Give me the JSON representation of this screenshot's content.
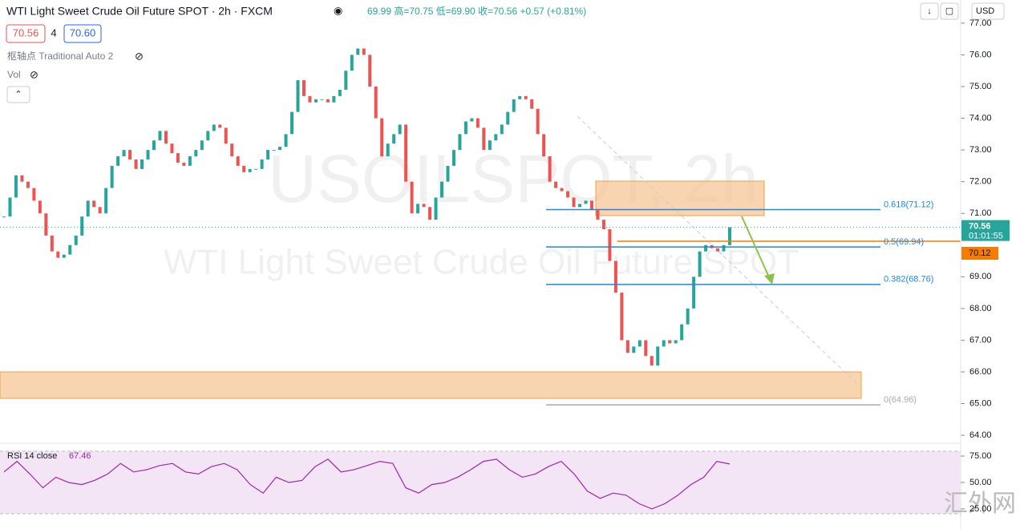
{
  "header": {
    "title": "WTI Light Sweet Crude Oil Future SPOT · 2h · FXCM",
    "ohlc": "69.99 高=70.75 低=69.90 收=70.56 +0.57 (+0.81%)",
    "currency": "USD"
  },
  "quote": {
    "bid": "70.56",
    "spread": "4",
    "ask": "70.60"
  },
  "indicators": {
    "pivot": "枢轴点 Traditional Auto 2",
    "vol": "Vol"
  },
  "watermark": {
    "symbol": "USOILSPOT, 2h",
    "name": "WTI Light Sweet Crude Oil Future SPOT",
    "site": "汇外网"
  },
  "chart_data": {
    "type": "candlestick",
    "values": [
      70.9,
      71.5,
      72.2,
      72.0,
      71.8,
      71.4,
      71.0,
      70.3,
      69.8,
      69.6,
      69.7,
      70.0,
      70.3,
      70.9,
      71.4,
      71.2,
      71.0,
      71.8,
      72.5,
      72.8,
      73.0,
      72.7,
      72.4,
      72.7,
      73.0,
      73.3,
      73.6,
      73.2,
      72.9,
      72.6,
      72.5,
      72.8,
      73.0,
      73.3,
      73.6,
      73.8,
      73.7,
      73.2,
      72.8,
      72.5,
      72.3,
      72.4,
      72.4,
      72.7,
      73.0,
      73.0,
      73.1,
      73.5,
      74.2,
      75.2,
      74.7,
      74.5,
      74.6,
      74.6,
      74.5,
      74.7,
      74.9,
      75.5,
      76.0,
      76.2,
      76.0,
      75.0,
      74.0,
      72.8,
      73.2,
      73.5,
      73.8,
      72.0,
      71.0,
      71.3,
      71.2,
      70.8,
      71.5,
      72.0,
      72.5,
      73.0,
      73.5,
      73.9,
      74.0,
      73.7,
      73.0,
      73.3,
      73.5,
      73.8,
      74.2,
      74.6,
      74.7,
      74.6,
      74.3,
      73.5,
      72.8,
      72.0,
      71.8,
      71.7,
      71.5,
      71.2,
      71.3,
      71.4,
      71.1,
      70.8,
      70.5,
      69.5,
      68.5,
      67.0,
      66.6,
      66.8,
      67.0,
      66.5,
      66.2,
      66.8,
      67.0,
      66.9,
      67.0,
      67.5,
      68.0,
      69.0,
      69.8,
      70.0,
      69.9,
      69.8,
      70.0,
      70.56
    ],
    "ylim": [
      63.75,
      77.73
    ],
    "yticks": [
      {
        "value": 77,
        "label": "77.00"
      },
      {
        "value": 76,
        "label": "76.00"
      },
      {
        "value": 75,
        "label": "75.00"
      },
      {
        "value": 74,
        "label": "74.00"
      },
      {
        "value": 73,
        "label": "73.00"
      },
      {
        "value": 72,
        "label": "72.00"
      },
      {
        "value": 71,
        "label": "71.00"
      },
      {
        "value": 69,
        "label": "69.00"
      },
      {
        "value": 68,
        "label": "68.00"
      },
      {
        "value": 67,
        "label": "67.00"
      },
      {
        "value": 66,
        "label": "66.00"
      },
      {
        "value": 65,
        "label": "65.00"
      },
      {
        "value": 64,
        "label": "64.00"
      }
    ],
    "current_price": {
      "value": 70.56,
      "label": "70.56"
    },
    "countdown": "01:01:55",
    "level": {
      "value": 70.12,
      "label": "70.12"
    },
    "fib_levels": [
      {
        "value": 71.12,
        "label": "0.618(71.12)",
        "color": "#1e88e5"
      },
      {
        "value": 69.94,
        "label": "0.5(69.94)",
        "color": "#1e88e5"
      },
      {
        "value": 68.76,
        "label": "0.382(68.76)",
        "color": "#1e88e5"
      },
      {
        "value": 64.96,
        "label": "0(64.96)",
        "color": "#aaaaaa"
      }
    ],
    "up_color": "#26a69a",
    "down_color": "#ef5350"
  },
  "rsi": {
    "label": "RSI 14 close",
    "value": 67.46,
    "color": "#9c27b0",
    "values": [
      60,
      70,
      58,
      45,
      55,
      50,
      48,
      52,
      58,
      68,
      60,
      62,
      66,
      68,
      60,
      58,
      65,
      68,
      62,
      48,
      40,
      55,
      50,
      52,
      65,
      72,
      60,
      62,
      66,
      70,
      68,
      45,
      40,
      48,
      50,
      55,
      62,
      70,
      72,
      62,
      55,
      58,
      65,
      70,
      58,
      42,
      35,
      40,
      38,
      30,
      25,
      30,
      38,
      48,
      55,
      70,
      67.46
    ],
    "ylim": [
      9.8,
      85.6
    ],
    "yticks": [
      {
        "value": 75,
        "label": "75.00"
      },
      {
        "value": 50,
        "label": "50.00"
      },
      {
        "value": 25,
        "label": "25.00"
      }
    ]
  }
}
